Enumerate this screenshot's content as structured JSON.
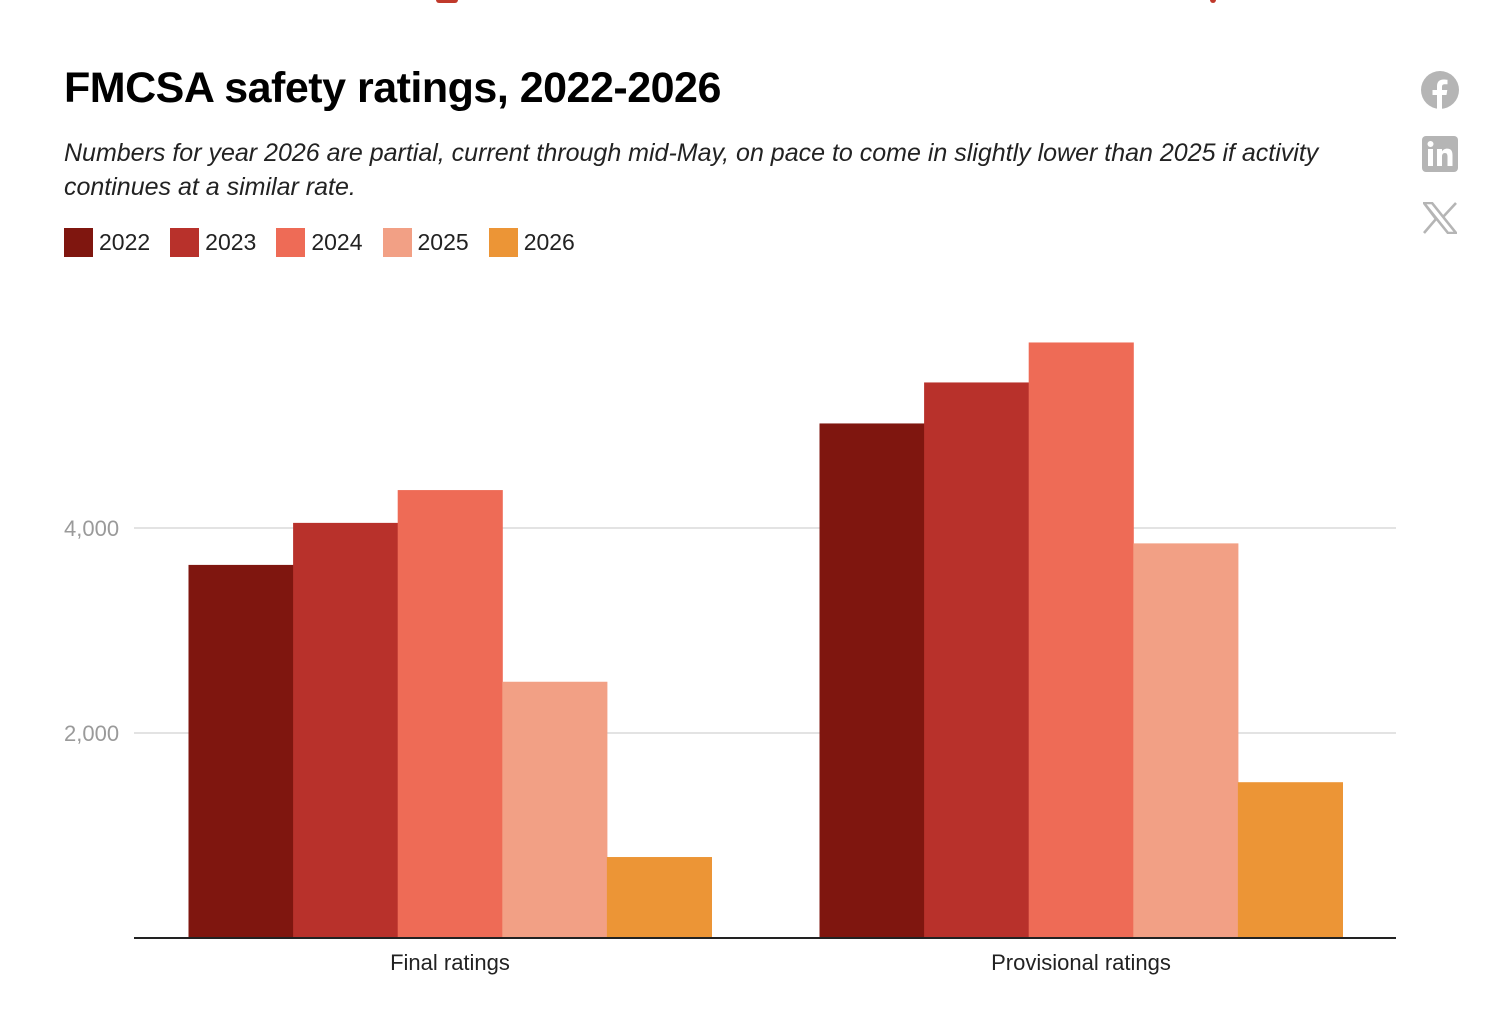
{
  "header": {
    "title": "FMCSA safety ratings, 2022-2026",
    "subtitle": "Numbers for year 2026 are partial, current through mid-May, on pace to come in slightly lower than 2025 if activity continues at a similar rate."
  },
  "share": {
    "icons": [
      "facebook-icon",
      "linkedin-icon",
      "x-icon"
    ]
  },
  "chart_data": {
    "type": "bar",
    "title": "FMCSA safety ratings, 2022-2026",
    "subtitle": "Numbers for year 2026 are partial, current through mid-May, on pace to come in slightly lower than 2025 if activity continues at a similar rate.",
    "categories": [
      "Final ratings",
      "Provisional ratings"
    ],
    "series": [
      {
        "name": "2022",
        "color": "#7f160f",
        "values": [
          3640,
          5020
        ]
      },
      {
        "name": "2023",
        "color": "#b8312b",
        "values": [
          4050,
          5420
        ]
      },
      {
        "name": "2024",
        "color": "#ee6b56",
        "values": [
          4370,
          5810
        ]
      },
      {
        "name": "2025",
        "color": "#f2a085",
        "values": [
          2500,
          3850
        ]
      },
      {
        "name": "2026",
        "color": "#ec9536",
        "values": [
          790,
          1520
        ]
      }
    ],
    "yticks": [
      2000,
      4000
    ],
    "ytick_labels": [
      "2,000",
      "4,000"
    ],
    "ylim": [
      0,
      6000
    ],
    "xlabel": "",
    "ylabel": "",
    "grid": true,
    "legend": "top-left"
  }
}
